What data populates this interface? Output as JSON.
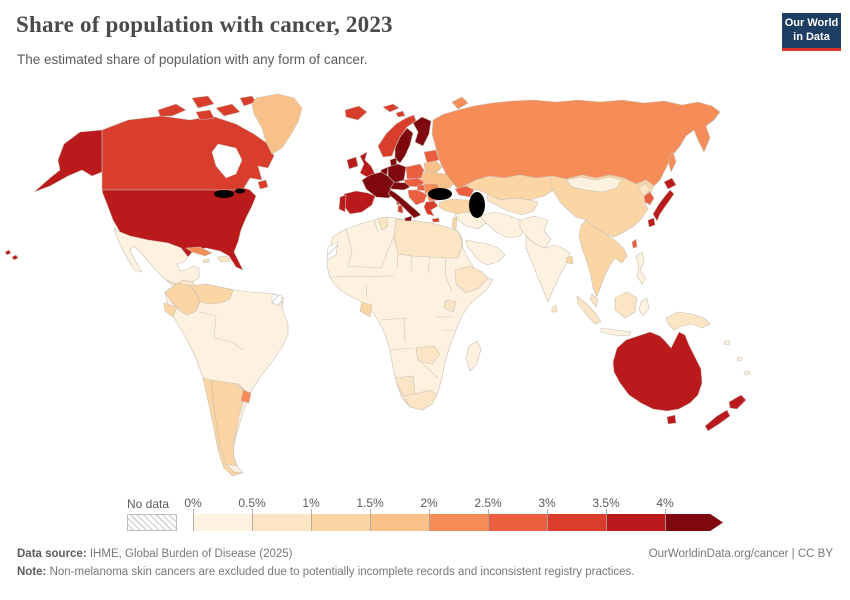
{
  "header": {
    "title": "Share of population with cancer, 2023",
    "subtitle": "The estimated share of population with any form of cancer.",
    "logo": {
      "line1": "Our World",
      "line2": "in Data"
    }
  },
  "legend": {
    "no_data_label": "No data",
    "ticks": [
      "0%",
      "0.5%",
      "1%",
      "1.5%",
      "2%",
      "2.5%",
      "3%",
      "3.5%",
      "4%"
    ]
  },
  "footer": {
    "source_label": "Data source:",
    "source_value": " IHME, Global Burden of Disease (2025)",
    "credit": "OurWorldinData.org/cancer | CC BY",
    "note_label": "Note:",
    "note_value": " Non-melanoma skin cancers are excluded due to potentially incomplete records and inconsistent registry practices."
  },
  "chart_data": {
    "type": "choropleth_map",
    "title": "Share of population with cancer, 2023",
    "unit": "%",
    "year": 2023,
    "legend_position": "bottom",
    "bins": [
      {
        "range": "0–0.5%",
        "color": "#fdf1e0"
      },
      {
        "range": "0.5–1%",
        "color": "#fce5c4"
      },
      {
        "range": "1–1.5%",
        "color": "#fbd5a3"
      },
      {
        "range": "1.5–2%",
        "color": "#f9c18a"
      },
      {
        "range": "2–2.5%",
        "color": "#f68c58"
      },
      {
        "range": "2.5–3%",
        "color": "#eb5e40"
      },
      {
        "range": "3–3.5%",
        "color": "#d93d2b"
      },
      {
        "range": "3.5–4%",
        "color": "#bb1a1c"
      },
      {
        "range": "4%+",
        "color": "#7f070e"
      }
    ],
    "no_data_color": "hatch",
    "regions": {
      "canada": {
        "name": "Canada",
        "bin": 6
      },
      "usa": {
        "name": "United States",
        "bin": 7
      },
      "greenland": {
        "name": "Greenland",
        "bin": 3
      },
      "mexico": {
        "name": "Mexico",
        "bin": 0
      },
      "central_america": {
        "name": "Central America",
        "bin": 1
      },
      "cuba": {
        "name": "Cuba",
        "bin": 4
      },
      "hispaniola": {
        "name": "Hispaniola",
        "bin": 1
      },
      "jamaica": {
        "name": "Jamaica",
        "bin": 1
      },
      "south_america_base": {
        "name": "Brazil, Peru, Bolivia, Paraguay, Guyanas",
        "bin": 0
      },
      "colombia": {
        "name": "Colombia",
        "bin": 2
      },
      "venezuela": {
        "name": "Venezuela",
        "bin": 2
      },
      "ecuador": {
        "name": "Ecuador",
        "bin": 2
      },
      "french_guiana": {
        "name": "French Guiana",
        "bin": "no_data"
      },
      "chile": {
        "name": "Chile",
        "bin": 2
      },
      "argentina": {
        "name": "Argentina",
        "bin": 2
      },
      "uruguay": {
        "name": "Uruguay",
        "bin": 4
      },
      "iceland": {
        "name": "Iceland",
        "bin": 6
      },
      "ireland": {
        "name": "Ireland",
        "bin": 7
      },
      "uk": {
        "name": "United Kingdom",
        "bin": 7
      },
      "norway": {
        "name": "Norway",
        "bin": 6
      },
      "svalbard": {
        "name": "Svalbard",
        "bin": 6
      },
      "sweden": {
        "name": "Sweden",
        "bin": 8
      },
      "finland": {
        "name": "Finland",
        "bin": 8
      },
      "denmark": {
        "name": "Denmark",
        "bin": 8
      },
      "germany": {
        "name": "Germany",
        "bin": 8
      },
      "benelux": {
        "name": "Benelux",
        "bin": 8
      },
      "france": {
        "name": "France",
        "bin": 8
      },
      "switzerland_austria": {
        "name": "Switzerland & Austria",
        "bin": 8
      },
      "italy": {
        "name": "Italy",
        "bin": 8
      },
      "sardinia": {
        "name": "Sardinia & Corsica",
        "bin": 6
      },
      "spain": {
        "name": "Spain",
        "bin": 7
      },
      "portugal": {
        "name": "Portugal",
        "bin": 7
      },
      "poland": {
        "name": "Poland",
        "bin": 5
      },
      "czech_slovakia": {
        "name": "Czechia & Slovakia",
        "bin": 5
      },
      "hungary": {
        "name": "Hungary",
        "bin": 5
      },
      "baltics": {
        "name": "Baltic states",
        "bin": 5
      },
      "belarus": {
        "name": "Belarus",
        "bin": 3
      },
      "ukraine": {
        "name": "Ukraine",
        "bin": 3
      },
      "romania": {
        "name": "Romania",
        "bin": 4
      },
      "bulgaria": {
        "name": "Bulgaria",
        "bin": 4
      },
      "balkans": {
        "name": "Western Balkans",
        "bin": 5
      },
      "greece": {
        "name": "Greece",
        "bin": 6
      },
      "russia": {
        "name": "Russia",
        "bin": 4
      },
      "caucasus": {
        "name": "Caucasus",
        "bin": 5
      },
      "kazakhstan": {
        "name": "Kazakhstan",
        "bin": 2
      },
      "central_asia": {
        "name": "Central Asia",
        "bin": 1
      },
      "turkey": {
        "name": "Turkey",
        "bin": 2
      },
      "syria_iraq": {
        "name": "Syria & Iraq",
        "bin": 0
      },
      "israel_jordan": {
        "name": "Israel & Jordan",
        "bin": 2
      },
      "saudi_arabia": {
        "name": "Arabian Peninsula",
        "bin": 0
      },
      "iran": {
        "name": "Iran",
        "bin": 0
      },
      "afghanistan_pakistan": {
        "name": "Afghanistan & Pakistan",
        "bin": 0
      },
      "india": {
        "name": "India",
        "bin": 0
      },
      "bangladesh": {
        "name": "Bangladesh",
        "bin": 2
      },
      "sri_lanka": {
        "name": "Sri Lanka",
        "bin": 1
      },
      "china": {
        "name": "China",
        "bin": 2
      },
      "mongolia": {
        "name": "Mongolia",
        "bin": 0
      },
      "north_korea": {
        "name": "North Korea",
        "bin": 1
      },
      "south_korea": {
        "name": "South Korea",
        "bin": 5
      },
      "japan": {
        "name": "Japan",
        "bin": 7
      },
      "taiwan": {
        "name": "Taiwan",
        "bin": 5
      },
      "hainan": {
        "name": "Hainan",
        "bin": 2
      },
      "indochina": {
        "name": "Mainland Southeast Asia",
        "bin": 2
      },
      "malaysia": {
        "name": "Malaysia",
        "bin": 1
      },
      "indonesia": {
        "name": "Indonesia (Sumatra, Borneo)",
        "bin": 1
      },
      "java": {
        "name": "Java",
        "bin": 0
      },
      "sulawesi": {
        "name": "Sulawesi",
        "bin": 0
      },
      "philippines": {
        "name": "Philippines",
        "bin": 0
      },
      "new_guinea": {
        "name": "New Guinea",
        "bin": 1
      },
      "africa": {
        "name": "Africa (most countries)",
        "bin": 0
      },
      "tunisia": {
        "name": "Tunisia",
        "bin": 1
      },
      "libya_egypt": {
        "name": "Libya & Egypt",
        "bin": 1
      },
      "ethiopia": {
        "name": "Ethiopia",
        "bin": 1
      },
      "gabon": {
        "name": "Gabon",
        "bin": 2
      },
      "uganda": {
        "name": "Uganda",
        "bin": 1
      },
      "zambia": {
        "name": "Zambia",
        "bin": 1
      },
      "namibia": {
        "name": "Namibia",
        "bin": 1
      },
      "south_africa": {
        "name": "South Africa",
        "bin": 1
      },
      "madagascar": {
        "name": "Madagascar",
        "bin": 0
      },
      "western_sahara": {
        "name": "Western Sahara",
        "bin": "no_data"
      },
      "australia": {
        "name": "Australia",
        "bin": 7
      },
      "new_zealand": {
        "name": "New Zealand",
        "bin": 7
      },
      "pacific_islands": {
        "name": "Pacific islands",
        "bin": 0
      }
    }
  },
  "map": {
    "ocean": "#ffffff",
    "border": "#c9c1b6"
  }
}
